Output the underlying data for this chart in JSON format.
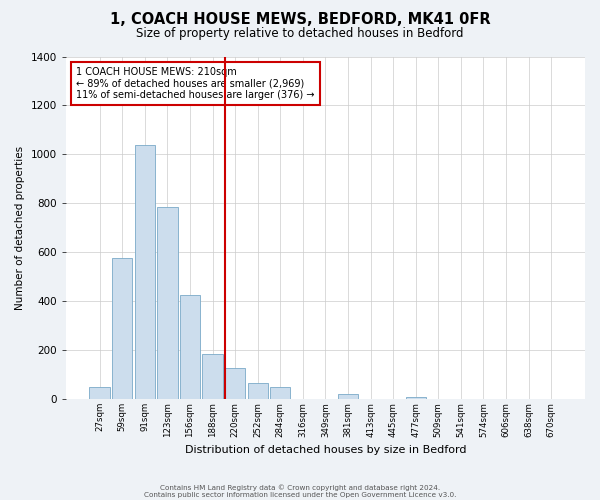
{
  "title": "1, COACH HOUSE MEWS, BEDFORD, MK41 0FR",
  "subtitle": "Size of property relative to detached houses in Bedford",
  "xlabel": "Distribution of detached houses by size in Bedford",
  "ylabel": "Number of detached properties",
  "bar_color": "#ccdded",
  "bar_edge_color": "#7aaac8",
  "categories": [
    "27sqm",
    "59sqm",
    "91sqm",
    "123sqm",
    "156sqm",
    "188sqm",
    "220sqm",
    "252sqm",
    "284sqm",
    "316sqm",
    "349sqm",
    "381sqm",
    "413sqm",
    "445sqm",
    "477sqm",
    "509sqm",
    "541sqm",
    "574sqm",
    "606sqm",
    "638sqm",
    "670sqm"
  ],
  "values": [
    50,
    575,
    1040,
    785,
    425,
    183,
    125,
    65,
    50,
    0,
    0,
    20,
    0,
    0,
    10,
    0,
    0,
    0,
    0,
    0,
    0
  ],
  "vline_x_idx": 6,
  "vline_color": "#cc0000",
  "annotation_title": "1 COACH HOUSE MEWS: 210sqm",
  "annotation_line1": "← 89% of detached houses are smaller (2,969)",
  "annotation_line2": "11% of semi-detached houses are larger (376) →",
  "annotation_box_color": "#cc0000",
  "ylim": [
    0,
    1400
  ],
  "yticks": [
    0,
    200,
    400,
    600,
    800,
    1000,
    1200,
    1400
  ],
  "footer1": "Contains HM Land Registry data © Crown copyright and database right 2024.",
  "footer2": "Contains public sector information licensed under the Open Government Licence v3.0.",
  "background_color": "#eef2f6",
  "plot_bg_color": "#ffffff",
  "grid_color": "#cccccc"
}
